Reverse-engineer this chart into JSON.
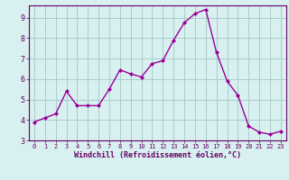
{
  "x": [
    0,
    1,
    2,
    3,
    4,
    5,
    6,
    7,
    8,
    9,
    10,
    11,
    12,
    13,
    14,
    15,
    16,
    17,
    18,
    19,
    20,
    21,
    22,
    23
  ],
  "y": [
    3.9,
    4.1,
    4.3,
    5.4,
    4.7,
    4.7,
    4.7,
    5.5,
    6.45,
    6.25,
    6.1,
    6.75,
    6.9,
    7.9,
    8.75,
    9.2,
    9.4,
    7.3,
    5.9,
    5.2,
    3.7,
    3.4,
    3.3,
    3.45
  ],
  "line_color": "#990099",
  "marker": "D",
  "marker_size": 2.0,
  "bg_color": "#d8f0f0",
  "grid_color": "#aacccc",
  "axis_color": "#660066",
  "xlabel": "Windchill (Refroidissement éolien,°C)",
  "ylim": [
    3,
    9.6
  ],
  "xlim_left": -0.5,
  "xlim_right": 23.5,
  "yticks": [
    3,
    4,
    5,
    6,
    7,
    8,
    9
  ],
  "xticks": [
    0,
    1,
    2,
    3,
    4,
    5,
    6,
    7,
    8,
    9,
    10,
    11,
    12,
    13,
    14,
    15,
    16,
    17,
    18,
    19,
    20,
    21,
    22,
    23
  ]
}
